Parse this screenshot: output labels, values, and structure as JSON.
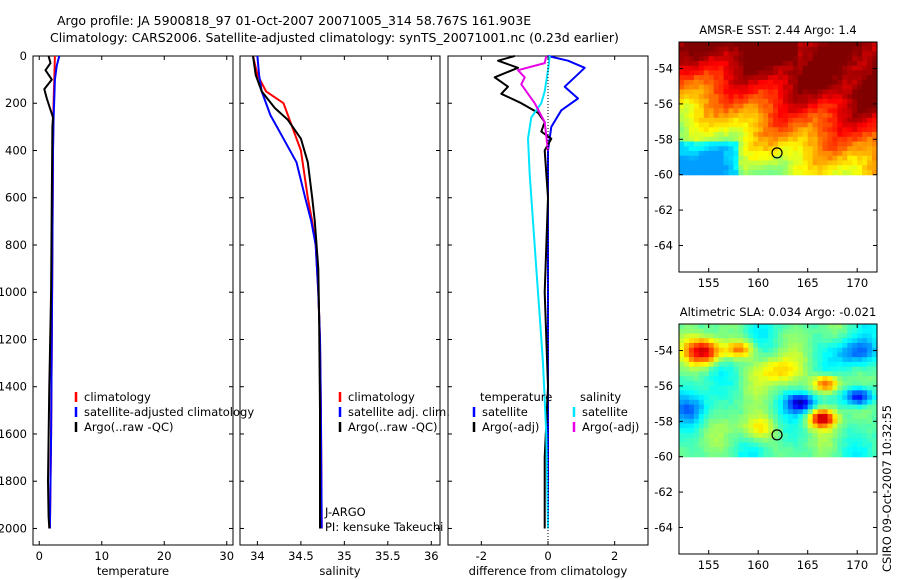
{
  "header": {
    "line1": "Argo profile: JA 5900818_97 01-Oct-2007 20071005_314 58.767S 161.903E",
    "line2": "Climatology: CARS2006. Satellite-adjusted climatology: synTS_20071001.nc (0.23d earlier)"
  },
  "side_label": "CSIRO 09-Oct-2007 10:32:55",
  "colors": {
    "climatology": "#ff0000",
    "satellite": "#0000ff",
    "argo": "#000000",
    "cyan": "#00e5ff",
    "magenta": "#e800e8",
    "land": "#ffffff"
  },
  "chart_data": [
    {
      "id": "temperature",
      "type": "line",
      "xlabel": "temperature",
      "ylabel": "",
      "xlim": [
        -1,
        31
      ],
      "ylim": [
        2070,
        0
      ],
      "xticks": [
        0,
        10,
        20,
        30
      ],
      "yticks": [
        0,
        200,
        400,
        600,
        800,
        1000,
        1200,
        1400,
        1600,
        1800,
        2000
      ],
      "legend": {
        "position": "middle",
        "entries": [
          "climatology",
          "satellite-adjusted climatology",
          "Argo(..raw -QC)"
        ]
      },
      "series": [
        {
          "name": "climatology",
          "color": "#ff0000",
          "x": [
            2.5,
            2.45,
            2.4,
            2.35,
            2.3,
            2.25,
            2.2,
            2.1,
            2.0,
            1.9,
            1.7
          ],
          "y": [
            0,
            50,
            100,
            150,
            200,
            260,
            400,
            800,
            1200,
            1600,
            2000
          ]
        },
        {
          "name": "satellite-adjusted climatology",
          "color": "#0000ff",
          "x": [
            3.2,
            2.8,
            2.5,
            2.4,
            2.3,
            2.2,
            2.1,
            2.0,
            1.9,
            1.7
          ],
          "y": [
            0,
            40,
            100,
            180,
            260,
            400,
            800,
            1200,
            1600,
            2000
          ]
        },
        {
          "name": "Argo(..raw -QC)",
          "color": "#000000",
          "x": [
            1.5,
            1.8,
            1.0,
            2.0,
            0.8,
            1.2,
            1.7,
            2.2,
            2.1,
            2.0,
            1.9,
            1.6,
            1.4,
            1.5,
            1.6
          ],
          "y": [
            0,
            30,
            60,
            100,
            140,
            180,
            220,
            260,
            300,
            600,
            1000,
            1400,
            1800,
            1950,
            2000
          ]
        }
      ]
    },
    {
      "id": "salinity",
      "type": "line",
      "xlabel": "salinity",
      "ylabel": "",
      "xlim": [
        33.8,
        36.1
      ],
      "ylim": [
        2070,
        0
      ],
      "xticks": [
        34,
        34.5,
        35,
        35.5,
        36
      ],
      "legend": {
        "position": "middle-right",
        "entries": [
          "climatology",
          "satellite adj. clim.",
          "Argo(..raw -QC)"
        ]
      },
      "annotations": [
        "J-ARGO",
        "PI: kensuke Takeuchi"
      ],
      "series": [
        {
          "name": "climatology",
          "color": "#ff0000",
          "x": [
            33.95,
            34.0,
            34.1,
            34.3,
            34.4,
            34.5,
            34.58,
            34.63,
            34.67,
            34.7,
            34.72,
            34.73,
            34.74
          ],
          "y": [
            0,
            80,
            150,
            200,
            300,
            400,
            600,
            700,
            800,
            1000,
            1200,
            1500,
            2000
          ]
        },
        {
          "name": "satellite adj. clim.",
          "color": "#0000ff",
          "x": [
            34.0,
            34.02,
            34.05,
            34.15,
            34.3,
            34.45,
            34.55,
            34.62,
            34.67,
            34.7,
            34.72,
            34.73,
            34.74
          ],
          "y": [
            0,
            80,
            150,
            250,
            350,
            450,
            600,
            700,
            800,
            1000,
            1200,
            1500,
            2000
          ]
        },
        {
          "name": "Argo(..raw -QC)",
          "color": "#000000",
          "x": [
            33.95,
            33.98,
            34.05,
            34.2,
            34.35,
            34.5,
            34.58,
            34.63,
            34.66,
            34.7,
            34.71,
            34.72,
            34.72,
            34.72
          ],
          "y": [
            0,
            80,
            150,
            220,
            270,
            350,
            450,
            600,
            700,
            900,
            1100,
            1500,
            1800,
            2000
          ]
        }
      ]
    },
    {
      "id": "difference",
      "type": "line",
      "xlabel": "difference from climatology",
      "ylabel": "",
      "xlim": [
        -3,
        3
      ],
      "ylim": [
        2070,
        0
      ],
      "xticks": [
        -2,
        0,
        2
      ],
      "legend": {
        "position": "middle",
        "entries": [
          "temperature",
          "satellite",
          "Argo(-adj)",
          "salinity",
          "satellite",
          "Argo(-adj)"
        ]
      },
      "series": [
        {
          "name": "temperature satellite",
          "color": "#0000ff",
          "x": [
            0.0,
            0.6,
            1.1,
            0.8,
            0.5,
            0.9,
            0.4,
            0.1,
            0.0,
            0.0,
            0.0,
            0.0
          ],
          "y": [
            0,
            20,
            50,
            90,
            130,
            180,
            230,
            300,
            400,
            800,
            1500,
            2000
          ]
        },
        {
          "name": "temperature Argo(-adj)",
          "color": "#000000",
          "x": [
            -1.0,
            -1.5,
            -0.9,
            -1.6,
            -1.2,
            -1.4,
            -0.8,
            -0.3,
            -0.1,
            -0.2,
            0.1,
            -0.1,
            0.0,
            -0.1,
            0.0,
            -0.1,
            -0.1,
            -0.1
          ],
          "y": [
            0,
            20,
            50,
            90,
            130,
            160,
            200,
            240,
            280,
            320,
            350,
            400,
            600,
            1000,
            1400,
            1700,
            1900,
            2000
          ]
        },
        {
          "name": "salinity satellite",
          "color": "#00e5ff",
          "x": [
            0.05,
            0.0,
            -0.1,
            -0.2,
            -0.5,
            -0.6,
            -0.55,
            -0.45,
            -0.35,
            -0.25,
            -0.15,
            -0.05,
            0.0
          ],
          "y": [
            0,
            60,
            150,
            200,
            260,
            350,
            500,
            700,
            900,
            1100,
            1300,
            1600,
            2000
          ]
        },
        {
          "name": "salinity Argo(-adj)",
          "color": "#e800e8",
          "x": [
            -0.05,
            -0.1,
            -0.9,
            -0.7,
            -0.8,
            -0.6,
            -0.4,
            -0.1,
            -0.05,
            0.0
          ],
          "y": [
            0,
            30,
            60,
            90,
            120,
            160,
            200,
            280,
            340,
            400
          ]
        }
      ]
    },
    {
      "id": "sst",
      "type": "heatmap",
      "title": "AMSR-E SST: 2.44 Argo: 1.4",
      "xlim": [
        152,
        172
      ],
      "ylim": [
        -65.5,
        -52.5
      ],
      "xticks": [
        155,
        160,
        165,
        170
      ],
      "yticks": [
        -54,
        -56,
        -58,
        -60,
        -62,
        -64
      ],
      "data_extent_lat": [
        -60,
        -52.5
      ],
      "marker": {
        "lon": 161.903,
        "lat": -58.767
      }
    },
    {
      "id": "sla",
      "type": "heatmap",
      "title": "Altimetric SLA: 0.034 Argo: -0.021",
      "xlim": [
        152,
        172
      ],
      "ylim": [
        -65.5,
        -52.5
      ],
      "xticks": [
        155,
        160,
        165,
        170
      ],
      "yticks": [
        -54,
        -56,
        -58,
        -60,
        -62,
        -64
      ],
      "data_extent_lat": [
        -60,
        -52.5
      ],
      "marker": {
        "lon": 161.903,
        "lat": -58.767
      }
    }
  ]
}
